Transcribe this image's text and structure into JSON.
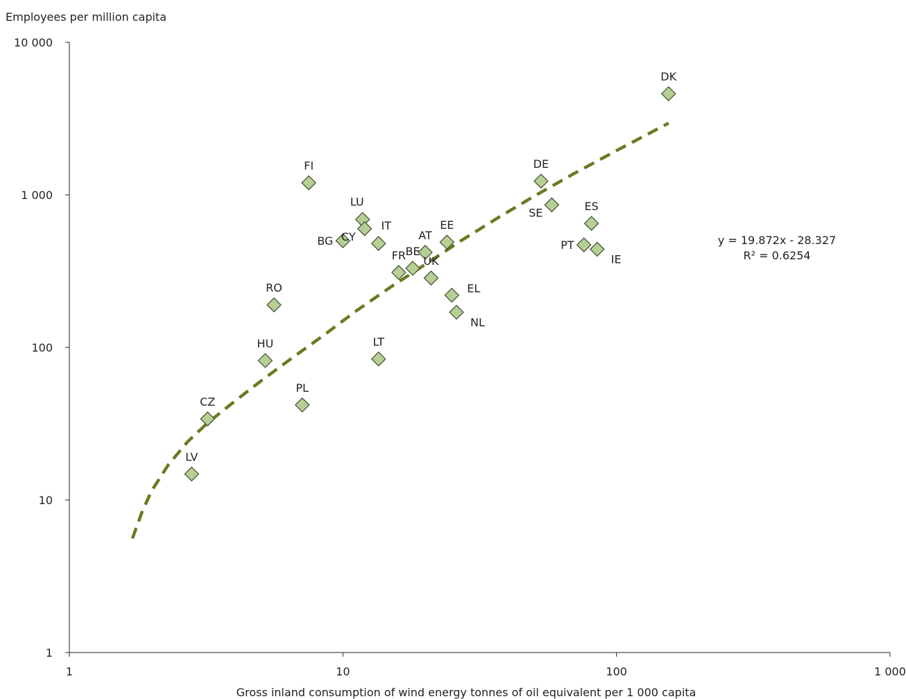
{
  "chart_data": {
    "type": "scatter",
    "ylabel": "Employees per million capita",
    "xlabel": "Gross inland consumption of wind energy tonnes of oil equivalent per 1 000 capita",
    "x_scale": "log",
    "y_scale": "log",
    "xlim": [
      1,
      1000
    ],
    "ylim": [
      1,
      10000
    ],
    "x_ticks": [
      {
        "value": 1,
        "label": "1"
      },
      {
        "value": 10,
        "label": "10"
      },
      {
        "value": 100,
        "label": "100"
      },
      {
        "value": 1000,
        "label": "1 000"
      }
    ],
    "y_ticks": [
      {
        "value": 1,
        "label": "1"
      },
      {
        "value": 10,
        "label": "10"
      },
      {
        "value": 100,
        "label": "100"
      },
      {
        "value": 1000,
        "label": "1 000"
      },
      {
        "value": 10000,
        "label": "10 000"
      }
    ],
    "grid": false,
    "marker": {
      "shape": "diamond",
      "fill": "#b5cf94",
      "stroke": "#3f4a30"
    },
    "trendline": {
      "style": "dashed",
      "color": "#6b7a22",
      "equation": "y = 19.872x - 28.327",
      "r_squared": "R² = 0.6254",
      "curve": [
        {
          "x": 1.7,
          "y": 5.6
        },
        {
          "x": 1.85,
          "y": 8.5
        },
        {
          "x": 2.0,
          "y": 11.5
        },
        {
          "x": 2.3,
          "y": 17
        },
        {
          "x": 2.7,
          "y": 24
        },
        {
          "x": 3.2,
          "y": 32
        },
        {
          "x": 4.0,
          "y": 44
        },
        {
          "x": 5.0,
          "y": 60
        },
        {
          "x": 6.5,
          "y": 85
        },
        {
          "x": 8.5,
          "y": 120
        },
        {
          "x": 11,
          "y": 170
        },
        {
          "x": 15,
          "y": 250
        },
        {
          "x": 20,
          "y": 350
        },
        {
          "x": 27,
          "y": 500
        },
        {
          "x": 37,
          "y": 710
        },
        {
          "x": 50,
          "y": 980
        },
        {
          "x": 70,
          "y": 1380
        },
        {
          "x": 100,
          "y": 1950
        },
        {
          "x": 130,
          "y": 2500
        },
        {
          "x": 155,
          "y": 2950
        }
      ]
    },
    "points": [
      {
        "label": "DK",
        "x": 155,
        "y": 4600,
        "label_pos": "above"
      },
      {
        "label": "FI",
        "x": 7.5,
        "y": 1200,
        "label_pos": "above"
      },
      {
        "label": "DE",
        "x": 53,
        "y": 1230,
        "label_pos": "above"
      },
      {
        "label": "SE",
        "x": 58,
        "y": 860,
        "label_pos": "below-left"
      },
      {
        "label": "ES",
        "x": 81,
        "y": 650,
        "label_pos": "above"
      },
      {
        "label": "PT",
        "x": 76,
        "y": 470,
        "label_pos": "left"
      },
      {
        "label": "IE",
        "x": 85,
        "y": 440,
        "label_pos": "below-right"
      },
      {
        "label": "LU",
        "x": 11.8,
        "y": 690,
        "label_pos": "above-left"
      },
      {
        "label": "CY",
        "x": 12,
        "y": 600,
        "label_pos": "below-left"
      },
      {
        "label": "BG",
        "x": 10,
        "y": 500,
        "label_pos": "left"
      },
      {
        "label": "IT",
        "x": 13.5,
        "y": 480,
        "label_pos": "above-right"
      },
      {
        "label": "AT",
        "x": 20,
        "y": 420,
        "label_pos": "above"
      },
      {
        "label": "EE",
        "x": 24,
        "y": 490,
        "label_pos": "above"
      },
      {
        "label": "FR",
        "x": 16,
        "y": 310,
        "label_pos": "above"
      },
      {
        "label": "BE",
        "x": 18,
        "y": 330,
        "label_pos": "above"
      },
      {
        "label": "UK",
        "x": 21,
        "y": 285,
        "label_pos": "above"
      },
      {
        "label": "EL",
        "x": 25,
        "y": 220,
        "label_pos": "right"
      },
      {
        "label": "NL",
        "x": 26,
        "y": 170,
        "label_pos": "below-right"
      },
      {
        "label": "RO",
        "x": 5.6,
        "y": 190,
        "label_pos": "above"
      },
      {
        "label": "HU",
        "x": 5.2,
        "y": 82,
        "label_pos": "above"
      },
      {
        "label": "LT",
        "x": 13.5,
        "y": 84,
        "label_pos": "above"
      },
      {
        "label": "PL",
        "x": 7.1,
        "y": 42,
        "label_pos": "above"
      },
      {
        "label": "CZ",
        "x": 3.2,
        "y": 34,
        "label_pos": "above"
      },
      {
        "label": "LV",
        "x": 2.8,
        "y": 14.8,
        "label_pos": "above"
      }
    ]
  }
}
